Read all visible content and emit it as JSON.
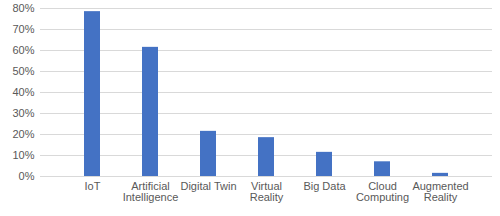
{
  "chart_data": {
    "type": "bar",
    "categories": [
      "IoT",
      "Artificial Intelligence",
      "Digital Twin",
      "Virtual Reality",
      "Big Data",
      "Cloud Computing",
      "Augmented Reality"
    ],
    "values": [
      78.5,
      61.5,
      21.5,
      18.5,
      11.5,
      7,
      1.5
    ],
    "color": "#4472c4",
    "ylim": [
      0,
      80
    ],
    "yticks": [
      {
        "value": 0,
        "label": "0%"
      },
      {
        "value": 10,
        "label": "10%"
      },
      {
        "value": 20,
        "label": "20%"
      },
      {
        "value": 30,
        "label": "30%"
      },
      {
        "value": 40,
        "label": "40%"
      },
      {
        "value": 50,
        "label": "50%"
      },
      {
        "value": 60,
        "label": "60%"
      },
      {
        "value": 70,
        "label": "70%"
      },
      {
        "value": 80,
        "label": "80%"
      }
    ],
    "grid": true
  }
}
